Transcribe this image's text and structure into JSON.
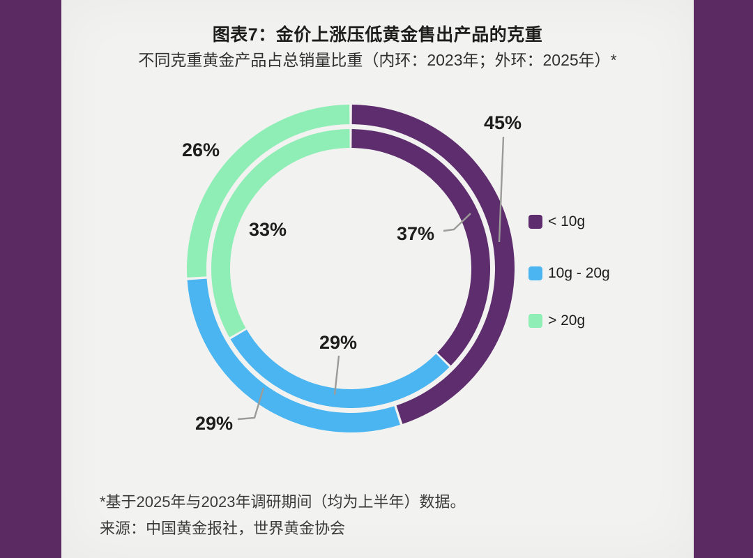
{
  "page": {
    "frame_color": "#5C2A62",
    "paper_color": "#F2F2F0"
  },
  "header": {
    "title": "图表7：金价上涨压低黄金售出产品的克重",
    "subtitle": "不同克重黄金产品占总销量比重（内环：2023年；外环：2025年）*"
  },
  "legend": {
    "items": [
      {
        "label": "< 10g",
        "color": "#5E2D6E"
      },
      {
        "label": "10g - 20g",
        "color": "#4AB5F0"
      },
      {
        "label": "> 20g",
        "color": "#8FEEB6"
      }
    ]
  },
  "footer": {
    "footnote": "*基于2025年与2023年调研期间（均为上半年）数据。",
    "source": "来源：中国黄金报社，世界黄金协会"
  },
  "chart_data": {
    "type": "donut",
    "title": "图表7：金价上涨压低黄金售出产品的克重",
    "subtitle": "不同克重黄金产品占总销量比重（内环：2023年；外环：2025年）*",
    "categories": [
      "< 10g",
      "10g - 20g",
      "> 20g"
    ],
    "colors": [
      "#5E2D6E",
      "#4AB5F0",
      "#8FEEB6"
    ],
    "series": [
      {
        "name": "2023年",
        "ring": "inner",
        "values": [
          37,
          29,
          33
        ],
        "unit": "%"
      },
      {
        "name": "2025年",
        "ring": "outer",
        "values": [
          45,
          29,
          26
        ],
        "unit": "%"
      }
    ],
    "label_format": "percent",
    "start_angle_deg": 0,
    "direction": "clockwise",
    "legend_position": "right",
    "leader_line_color": "#9B9B98"
  }
}
